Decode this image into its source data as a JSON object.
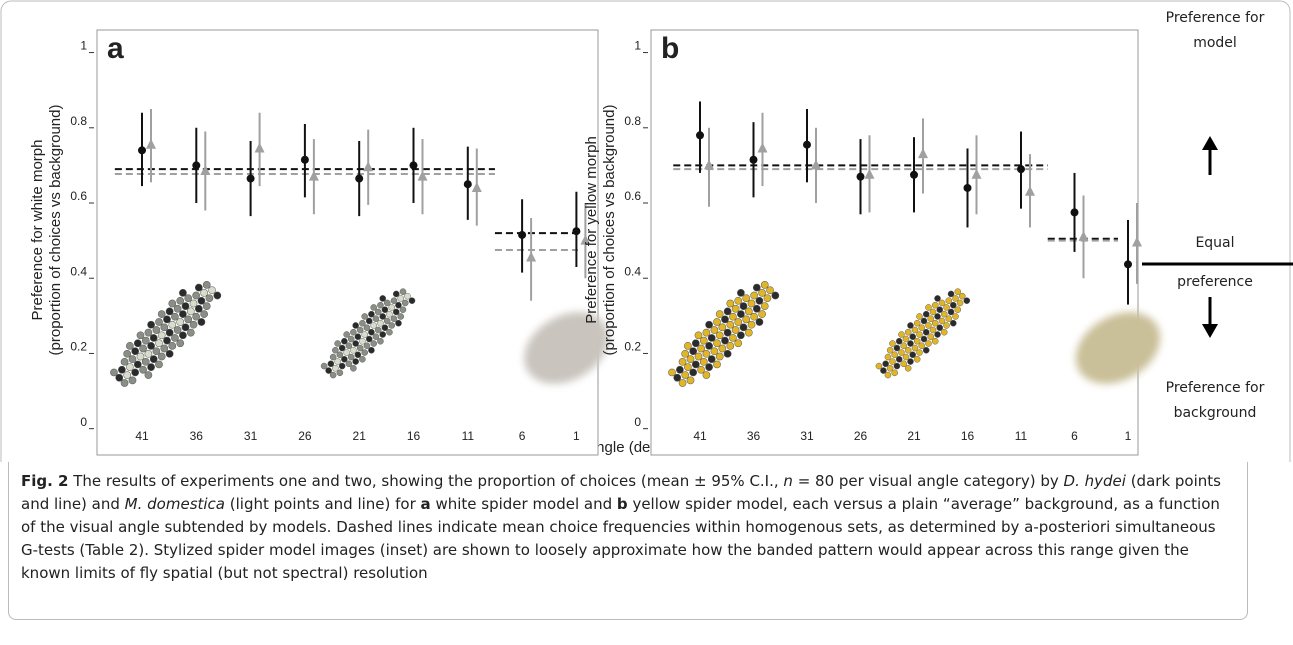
{
  "xlabel": "Visual angle (degrees)",
  "annotations": {
    "top": [
      "Preference for",
      "model"
    ],
    "middle": [
      "Equal",
      "preference"
    ],
    "bottom": [
      "Preference for",
      "background"
    ]
  },
  "chart_data": [
    {
      "type": "errorpoint",
      "panel_label": "a",
      "ylabel": [
        "Preference for white morph",
        "(proportion of choices vs background)"
      ],
      "categories": [
        "41",
        "36",
        "31",
        "26",
        "21",
        "16",
        "11",
        "6",
        "1"
      ],
      "ylim": [
        -0.07,
        1.06
      ],
      "yticks": [
        0,
        0.2,
        0.4,
        0.6,
        0.8,
        1
      ],
      "inset_colors": [
        "#d9dccb",
        "#bfc2b3",
        "#c9c4bd"
      ],
      "series": [
        {
          "color": "#111111",
          "marker": "circle",
          "values": [
            0.74,
            0.7,
            0.665,
            0.715,
            0.665,
            0.7,
            0.65,
            0.515,
            0.525
          ],
          "lower": [
            0.645,
            0.6,
            0.565,
            0.615,
            0.565,
            0.6,
            0.555,
            0.415,
            0.43
          ],
          "upper": [
            0.84,
            0.8,
            0.765,
            0.81,
            0.765,
            0.8,
            0.75,
            0.61,
            0.63
          ]
        },
        {
          "color": "#a0a0a0",
          "marker": "triangle",
          "values": [
            0.755,
            0.685,
            0.745,
            0.67,
            0.695,
            0.67,
            0.64,
            0.455,
            0.5
          ],
          "lower": [
            0.655,
            0.58,
            0.645,
            0.57,
            0.595,
            0.57,
            0.54,
            0.34,
            0.4
          ],
          "upper": [
            0.85,
            0.79,
            0.84,
            0.77,
            0.795,
            0.77,
            0.745,
            0.56,
            0.6
          ]
        }
      ],
      "mean_lines": [
        {
          "color": "#111111",
          "values": [
            0.69,
            0.69,
            0.69,
            0.69,
            0.69,
            0.69,
            0.69,
            0.52,
            0.52
          ]
        },
        {
          "color": "#a0a0a0",
          "values": [
            0.677,
            0.677,
            0.677,
            0.677,
            0.677,
            0.677,
            0.677,
            0.475,
            0.475
          ]
        }
      ]
    },
    {
      "type": "errorpoint",
      "panel_label": "b",
      "ylabel": [
        "Preference for yellow morph",
        "(proportion of choices vs background)"
      ],
      "categories": [
        "41",
        "36",
        "31",
        "26",
        "21",
        "16",
        "11",
        "6",
        "1"
      ],
      "ylim": [
        -0.07,
        1.06
      ],
      "yticks": [
        0,
        0.2,
        0.4,
        0.6,
        0.8,
        1
      ],
      "inset_colors": [
        "#e0b528",
        "#b38a2a",
        "#c9bf98"
      ],
      "series": [
        {
          "color": "#111111",
          "marker": "circle",
          "values": [
            0.78,
            0.715,
            0.755,
            0.67,
            0.675,
            0.64,
            0.69,
            0.575,
            0.437
          ],
          "lower": [
            0.68,
            0.615,
            0.655,
            0.57,
            0.575,
            0.535,
            0.585,
            0.47,
            0.33
          ],
          "upper": [
            0.87,
            0.815,
            0.85,
            0.77,
            0.775,
            0.745,
            0.79,
            0.68,
            0.555
          ]
        },
        {
          "color": "#a0a0a0",
          "marker": "triangle",
          "values": [
            0.7,
            0.745,
            0.7,
            0.675,
            0.73,
            0.675,
            0.63,
            0.51,
            0.495
          ],
          "lower": [
            0.59,
            0.645,
            0.6,
            0.575,
            0.625,
            0.57,
            0.535,
            0.4,
            0.385
          ],
          "upper": [
            0.8,
            0.84,
            0.8,
            0.78,
            0.825,
            0.78,
            0.73,
            0.62,
            0.6
          ]
        }
      ],
      "mean_lines": [
        {
          "color": "#111111",
          "values": [
            0.7,
            0.7,
            0.7,
            0.7,
            0.7,
            0.7,
            0.7,
            0.505,
            0.505
          ]
        },
        {
          "color": "#a0a0a0",
          "values": [
            0.69,
            0.69,
            0.69,
            0.69,
            0.69,
            0.69,
            0.69,
            0.5,
            0.5
          ]
        }
      ]
    }
  ],
  "caption": [
    {
      "text": "Fig. 2",
      "b": true
    },
    {
      "text": " The results of experiments one and two, showing the proportion of choices (mean ± 95% C.I., "
    },
    {
      "text": "n",
      "i": true
    },
    {
      "text": " = 80 per visual angle category) by "
    },
    {
      "text": "D. hydei",
      "i": true
    },
    {
      "text": " (dark points and line) and "
    },
    {
      "text": "M. domestica",
      "i": true
    },
    {
      "text": " (light points and line) for "
    },
    {
      "text": "a",
      "b": true
    },
    {
      "text": " white spider model and "
    },
    {
      "text": "b",
      "b": true
    },
    {
      "text": " yellow spider model, each versus a plain “average” background, as a function of the visual angle subtended by models. Dashed lines indicate mean choice frequencies within homogenous sets, as determined by a-posteriori simultaneous G-tests (Table 2). Stylized spider model images (inset) are shown to loosely approximate how the banded pattern would appear across this range given the known limits of fly spatial (but not spectral) resolution"
    }
  ]
}
